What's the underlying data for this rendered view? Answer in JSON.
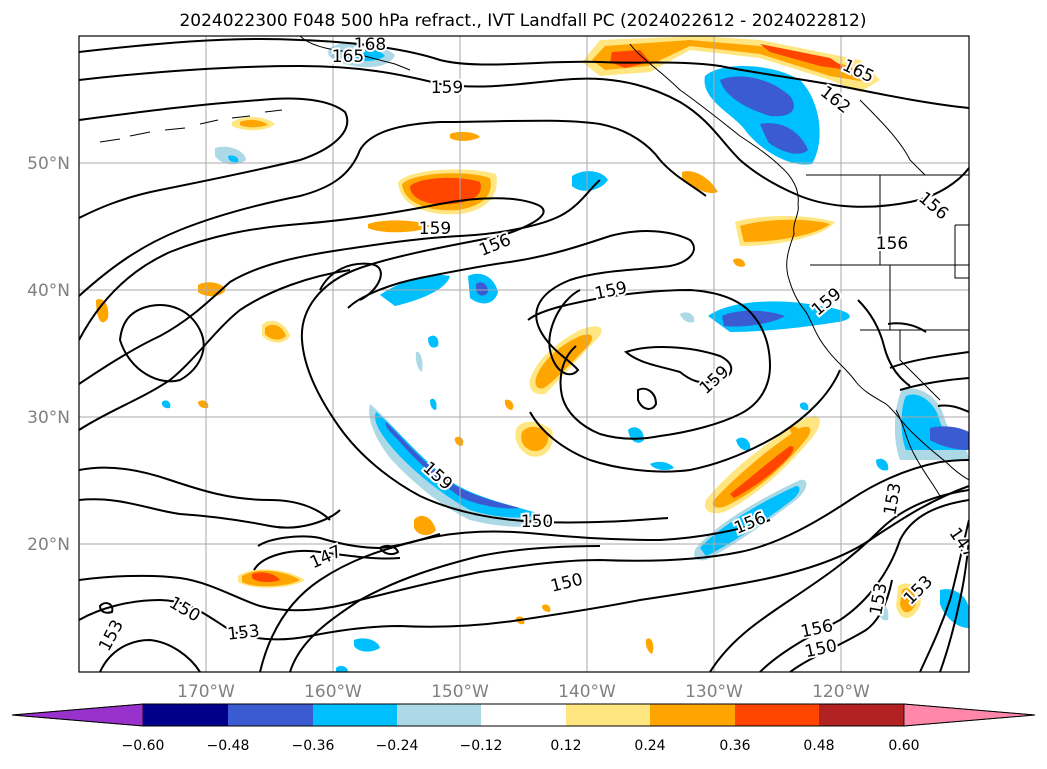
{
  "title": "2024022300 F048 500 hPa refract., IVT Landfall PC (2024022612 - 2024022812)",
  "lat_labels": [
    "50°N",
    "40°N",
    "30°N",
    "20°N"
  ],
  "lon_labels": [
    "170°W",
    "160°W",
    "150°W",
    "140°W",
    "130°W",
    "120°W"
  ],
  "contour_labels": [
    "168",
    "165",
    "159",
    "165",
    "162",
    "159",
    "156",
    "156",
    "156",
    "159",
    "159",
    "159",
    "159",
    "153",
    "150",
    "156",
    "147",
    "150",
    "150",
    "153",
    "153",
    "156",
    "150",
    "153",
    "153",
    "147"
  ],
  "colorbar": {
    "colors": [
      "#9932cc",
      "#00008b",
      "#3a5bd1",
      "#00bfff",
      "#add8e6",
      "#ffffff",
      "#ffe680",
      "#ffa500",
      "#ff4500",
      "#b22222",
      "#ff88aa"
    ],
    "tick_labels": [
      "−0.60",
      "−0.48",
      "−0.36",
      "−0.24",
      "−0.12",
      "0.12",
      "0.24",
      "0.36",
      "0.48",
      "0.60"
    ]
  },
  "colors": {
    "contour": "#000000",
    "coast": "#000000",
    "grid": "#aaaaaa",
    "axis_label": "#808080"
  }
}
